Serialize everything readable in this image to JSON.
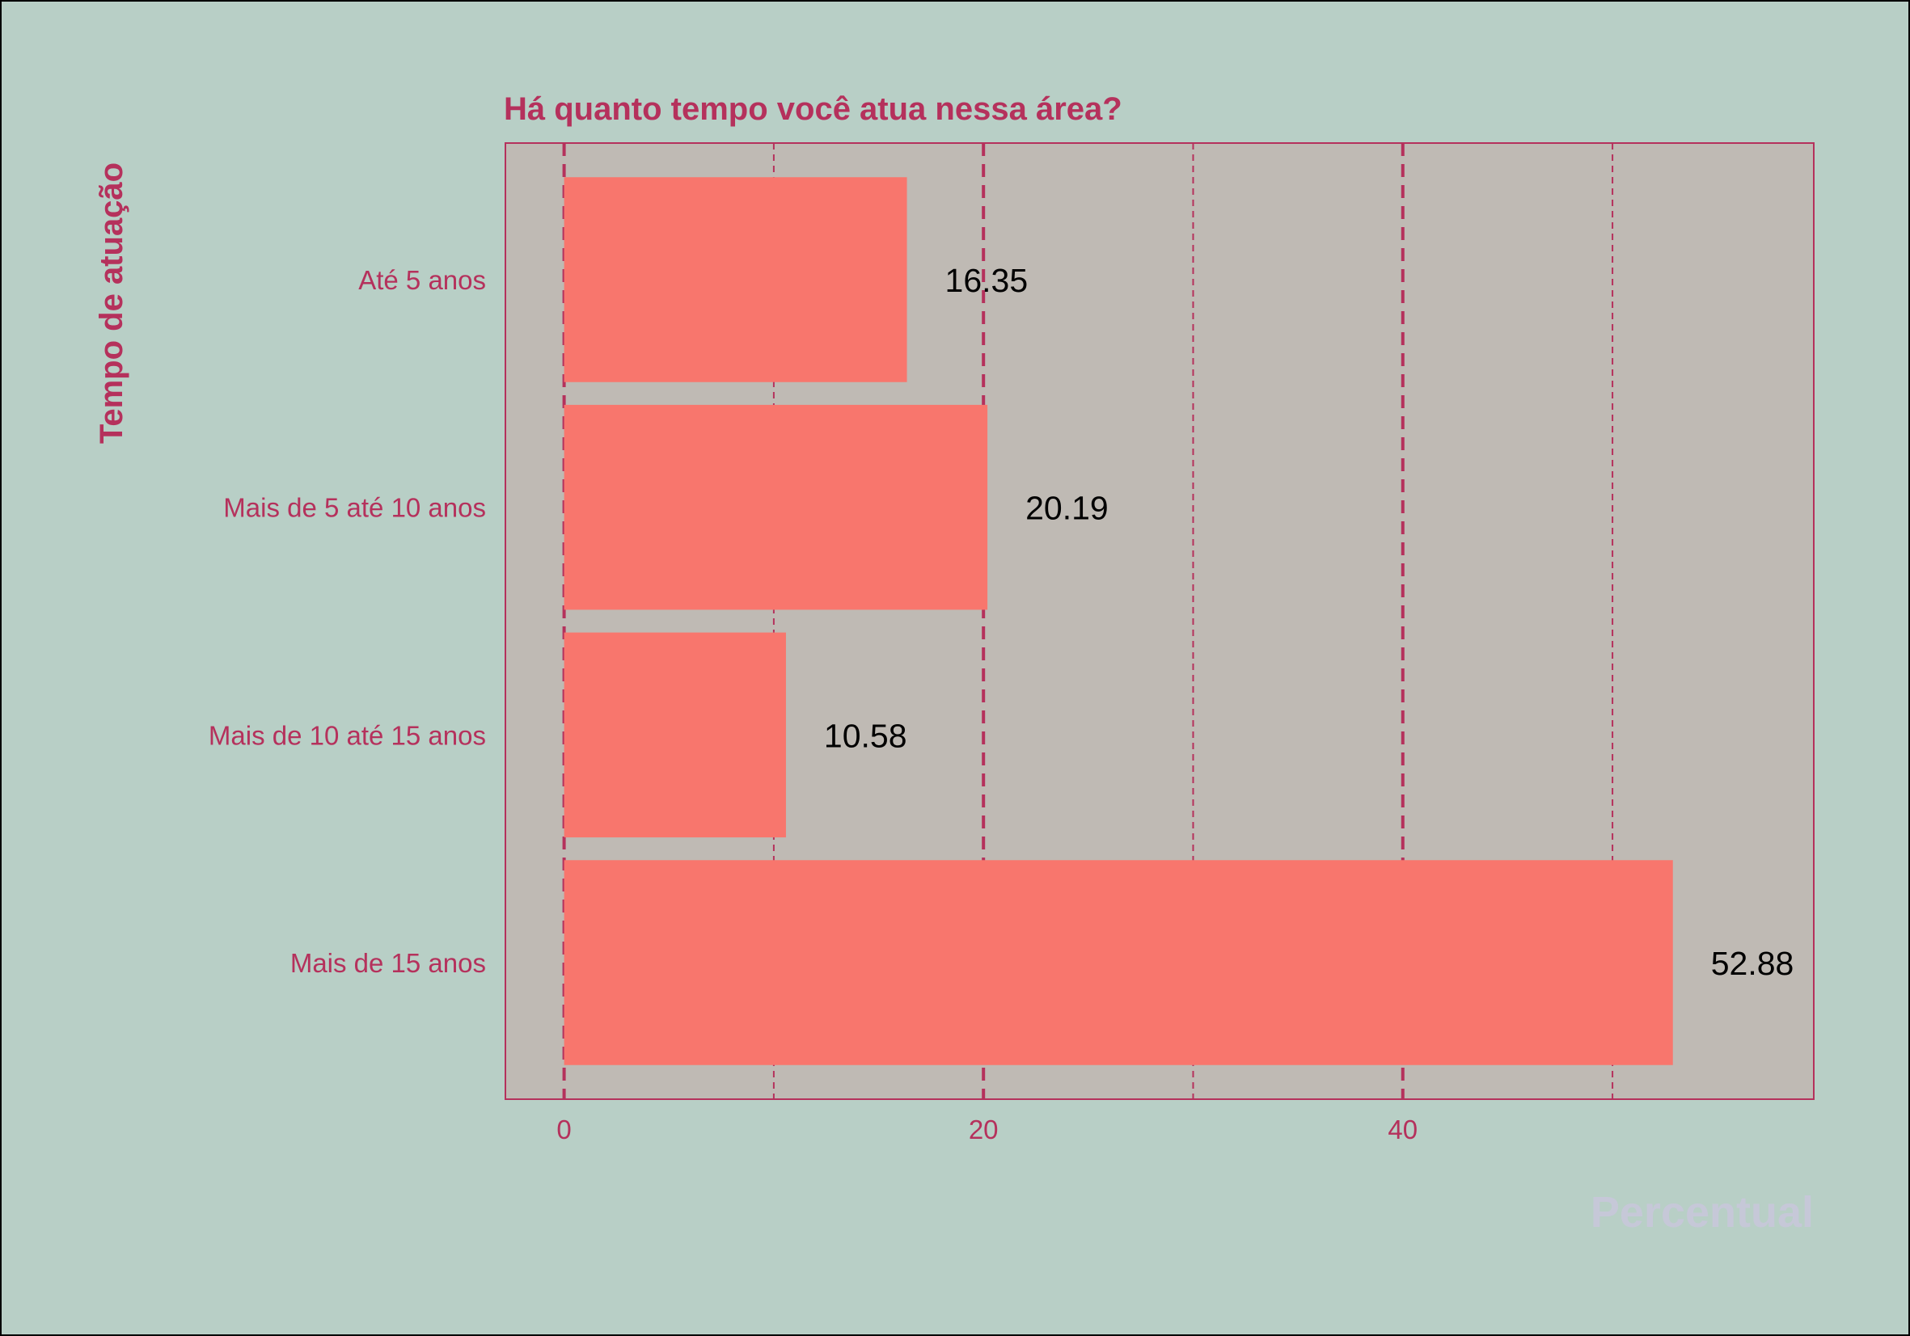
{
  "colors": {
    "background": "#b8cfc6",
    "panel": "#bfbab4",
    "bar": "#f8766d",
    "accent": "#b5315c",
    "value_label": "#000000",
    "xlabel": "#c6c8d8"
  },
  "chart_data": {
    "type": "bar",
    "orientation": "horizontal",
    "title": "Há quanto tempo você atua nessa área?",
    "xlabel": "Percentual",
    "ylabel": "Tempo de atuação",
    "categories": [
      "Até 5 anos",
      "Mais de 5 até 10 anos",
      "Mais de 10 até 15 anos",
      "Mais de 15 anos"
    ],
    "values": [
      16.35,
      20.19,
      10.58,
      52.88
    ],
    "value_labels": [
      "16.35",
      "20.19",
      "10.58",
      "52.88"
    ],
    "xlim": [
      -2.8,
      59.6
    ],
    "x_ticks": [
      0,
      20,
      40
    ],
    "x_tick_labels": [
      "0",
      "20",
      "40"
    ],
    "minor_gridlines": [
      10,
      30,
      50
    ],
    "grid": true,
    "legend": "none"
  }
}
